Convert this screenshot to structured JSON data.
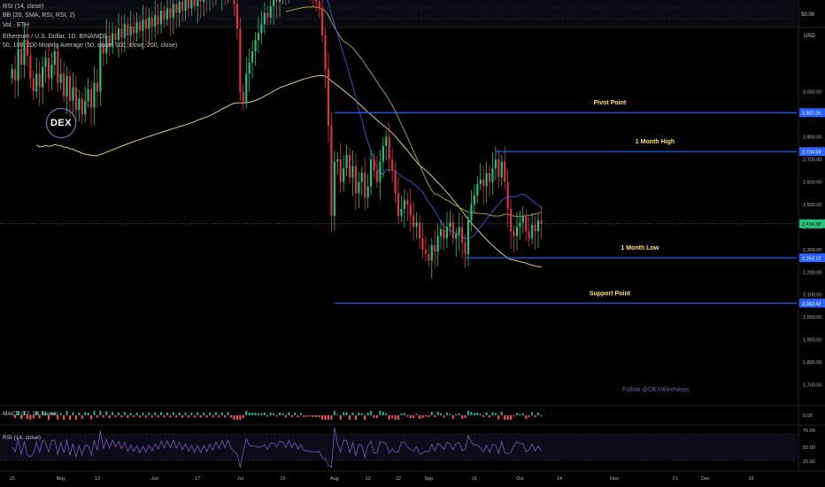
{
  "header": {
    "rsi_top_label": "RSI (14, close)",
    "bb_label": "BB (20, SMA, RSI, RSI, 2)",
    "vol_label": "Vol · ETH",
    "symbol_label": "Ethereum / U.S. Dollar, 1D, BINANCE",
    "ma_label": "50, 100, 200 Moving Average (50, close, 100, close, 200, close)",
    "currency": "USD",
    "rsi_top_value": "50.00"
  },
  "logo": {
    "text": "DEX"
  },
  "footer_text": "Follow @DEXWireNews",
  "colors": {
    "up": "#26c281",
    "down": "#e0353b",
    "level": "#2962ff",
    "ma50": "#3453c8",
    "ma100": "#9aa53f",
    "ma200": "#e2cc7a",
    "text": "#ffe36a"
  },
  "chart_data": {
    "type": "candlestick",
    "title": "Ethereum / U.S. Dollar, 1D, BINANCE",
    "ylim": [
      1600,
      3250
    ],
    "y_ticks": [
      1700,
      1800,
      1900,
      2000,
      2100,
      2200,
      2300,
      2400,
      2500,
      2600,
      2700,
      2800,
      2900,
      3000
    ],
    "y_tick_labels": [
      "1,700.00",
      "1,800.00",
      "1,900.00",
      "2,000.00",
      "2,100.00",
      "2,200.00",
      "2,300.00",
      "2,400.00",
      "2,500.00",
      "2,600.00",
      "2,700.00",
      "2,800.00",
      "2,900.00",
      "3,000.00"
    ],
    "x_ticks": [
      {
        "label": "15",
        "pos": 0
      },
      {
        "label": "May",
        "pos": 16
      },
      {
        "label": "13",
        "pos": 28
      },
      {
        "label": "Jun",
        "pos": 47
      },
      {
        "label": "17",
        "pos": 61
      },
      {
        "label": "Jul",
        "pos": 75
      },
      {
        "label": "15",
        "pos": 89
      },
      {
        "label": "Aug",
        "pos": 106
      },
      {
        "label": "12",
        "pos": 117
      },
      {
        "label": "22",
        "pos": 127
      },
      {
        "label": "Sep",
        "pos": 137
      },
      {
        "label": "16",
        "pos": 152
      },
      {
        "label": "Oct",
        "pos": 167
      },
      {
        "label": "14",
        "pos": 180
      },
      {
        "label": "Nov",
        "pos": 198
      },
      {
        "label": "21",
        "pos": 218
      },
      {
        "label": "Dec",
        "pos": 228
      },
      {
        "label": "16",
        "pos": 243
      }
    ],
    "x_range": [
      -4,
      258
    ],
    "levels": [
      {
        "name": "Pivot Point",
        "value": 2907.35,
        "label": "2,907.35",
        "start": 106
      },
      {
        "name": "1 Month High",
        "value": 2734.59,
        "label": "2,734.59",
        "start": 159
      },
      {
        "name": "1 Month Low",
        "value": 2263.12,
        "label": "2,263.12",
        "start": 149
      },
      {
        "name": "Support Point",
        "value": 2062.42,
        "label": "2,062.42",
        "start": 106
      }
    ],
    "current_price": {
      "value": 2414.38,
      "label": "2,414.38"
    },
    "candles_close": [
      3100,
      3050,
      3190,
      3120,
      3230,
      3160,
      3060,
      3000,
      3080,
      3020,
      3110,
      3150,
      3060,
      3120,
      3180,
      3040,
      3080,
      2980,
      3070,
      2960,
      3020,
      2920,
      2970,
      2900,
      2960,
      3010,
      2930,
      3040,
      3000,
      3210,
      3170,
      3250,
      3200,
      3260,
      3230,
      3280,
      3240,
      3300,
      3250,
      3290,
      3260,
      3310,
      3270,
      3320,
      3280,
      3330,
      3290,
      3340,
      3300,
      3360,
      3320,
      3370,
      3330,
      3390,
      3350,
      3400,
      3360,
      3410,
      3370,
      3420,
      3380,
      3440,
      3400,
      3450,
      3410,
      3460,
      3420,
      3480,
      3440,
      3500,
      3460,
      3520,
      3480,
      3390,
      3280,
      3000,
      2950,
      3080,
      3130,
      3180,
      3230,
      3260,
      3300,
      3350,
      3330,
      3380,
      3420,
      3400,
      3450,
      3480,
      3440,
      3500,
      3470,
      3520,
      3490,
      3530,
      3500,
      3480,
      3460,
      3430,
      3400,
      3370,
      3250,
      3100,
      2850,
      2450,
      2690,
      2700,
      2600,
      2660,
      2720,
      2620,
      2670,
      2550,
      2600,
      2640,
      2530,
      2580,
      2700,
      2650,
      2600,
      2690,
      2760,
      2800,
      2700,
      2650,
      2550,
      2450,
      2480,
      2520,
      2500,
      2450,
      2400,
      2420,
      2350,
      2300,
      2280,
      2250,
      2320,
      2290,
      2360,
      2390,
      2350,
      2400,
      2420,
      2350,
      2370,
      2400,
      2330,
      2280,
      2430,
      2500,
      2540,
      2590,
      2610,
      2580,
      2640,
      2600,
      2660,
      2700,
      2620,
      2690,
      2600,
      2480,
      2380,
      2360,
      2400,
      2420,
      2450,
      2380,
      2350,
      2410,
      2380,
      2430,
      2414
    ]
  }
}
